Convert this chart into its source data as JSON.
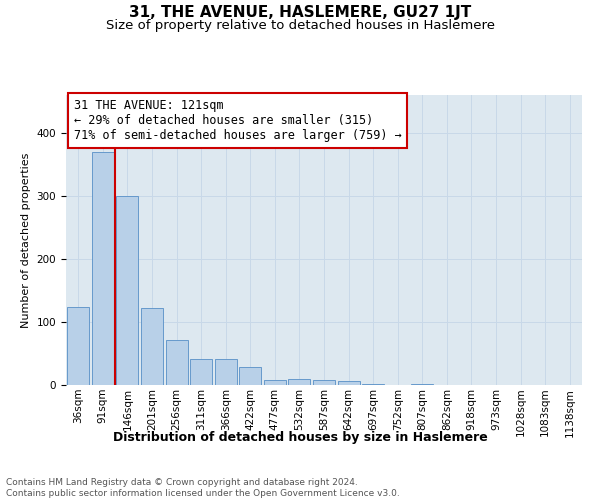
{
  "title": "31, THE AVENUE, HASLEMERE, GU27 1JT",
  "subtitle": "Size of property relative to detached houses in Haslemere",
  "xlabel": "Distribution of detached houses by size in Haslemere",
  "ylabel": "Number of detached properties",
  "categories": [
    "36sqm",
    "91sqm",
    "146sqm",
    "201sqm",
    "256sqm",
    "311sqm",
    "366sqm",
    "422sqm",
    "477sqm",
    "532sqm",
    "587sqm",
    "642sqm",
    "697sqm",
    "752sqm",
    "807sqm",
    "862sqm",
    "918sqm",
    "973sqm",
    "1028sqm",
    "1083sqm",
    "1138sqm"
  ],
  "values": [
    123,
    370,
    300,
    122,
    71,
    41,
    41,
    29,
    8,
    10,
    8,
    6,
    1,
    0,
    1,
    0,
    0,
    0,
    0,
    0,
    0
  ],
  "bar_color": "#b8d0e8",
  "bar_edge_color": "#6699cc",
  "property_line_x": 1.5,
  "annotation_text1": "31 THE AVENUE: 121sqm",
  "annotation_text2": "← 29% of detached houses are smaller (315)",
  "annotation_text3": "71% of semi-detached houses are larger (759) →",
  "annotation_box_color": "#ffffff",
  "annotation_box_edge_color": "#cc0000",
  "vline_color": "#cc0000",
  "grid_color": "#c8d8e8",
  "background_color": "#dde8f0",
  "ylim": [
    0,
    460
  ],
  "footer_text": "Contains HM Land Registry data © Crown copyright and database right 2024.\nContains public sector information licensed under the Open Government Licence v3.0.",
  "title_fontsize": 11,
  "subtitle_fontsize": 9.5,
  "xlabel_fontsize": 9,
  "ylabel_fontsize": 8,
  "tick_fontsize": 7.5,
  "annotation_fontsize": 8.5,
  "footer_fontsize": 6.5
}
